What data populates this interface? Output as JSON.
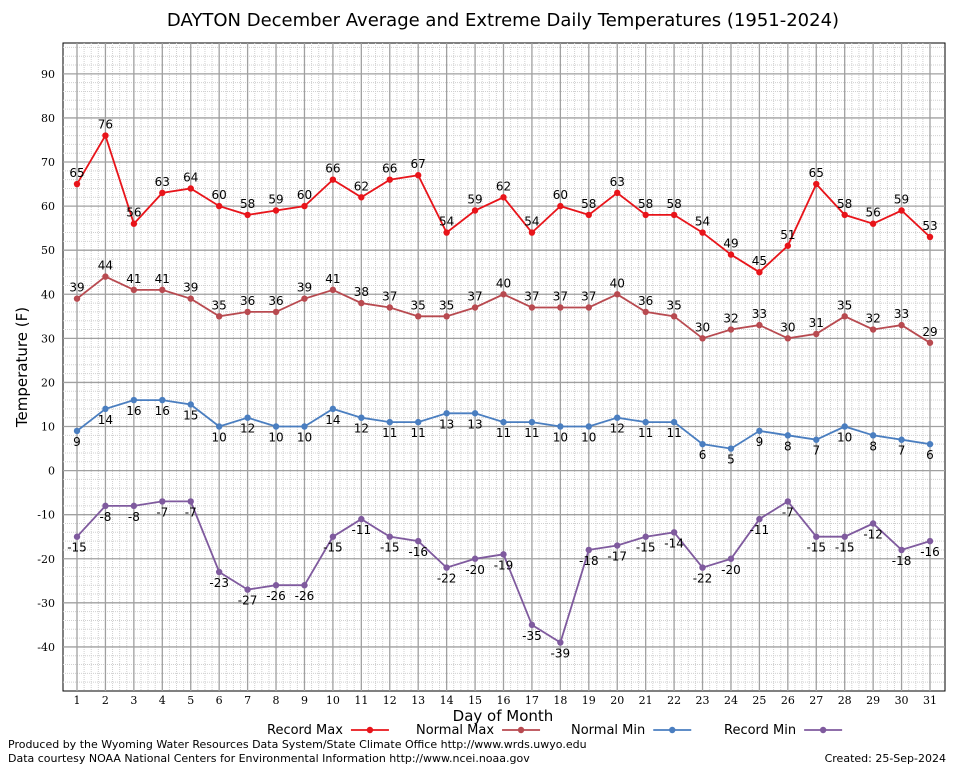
{
  "chart_data": {
    "type": "line",
    "title": "DAYTON December Average and Extreme Daily Temperatures (1951-2024)",
    "xlabel": "Day of Month",
    "ylabel": "Temperature (F)",
    "ylim": [
      -50,
      97
    ],
    "yticks": [
      -40,
      -30,
      -20,
      -10,
      0,
      10,
      20,
      30,
      40,
      50,
      60,
      70,
      80,
      90
    ],
    "x": [
      1,
      2,
      3,
      4,
      5,
      6,
      7,
      8,
      9,
      10,
      11,
      12,
      13,
      14,
      15,
      16,
      17,
      18,
      19,
      20,
      21,
      22,
      23,
      24,
      25,
      26,
      27,
      28,
      29,
      30,
      31
    ],
    "grid": true,
    "legend_position": "bottom",
    "series": [
      {
        "name": "Record Max",
        "color": "#e8141a",
        "values": [
          65,
          76,
          56,
          63,
          64,
          60,
          58,
          59,
          60,
          66,
          62,
          66,
          67,
          54,
          59,
          62,
          54,
          60,
          58,
          63,
          58,
          58,
          54,
          49,
          45,
          51,
          65,
          58,
          56,
          59,
          53
        ]
      },
      {
        "name": "Normal Max",
        "color": "#b84a50",
        "values": [
          39,
          44,
          41,
          41,
          39,
          35,
          36,
          36,
          39,
          41,
          38,
          37,
          35,
          35,
          37,
          40,
          37,
          37,
          37,
          40,
          36,
          35,
          30,
          32,
          33,
          30,
          31,
          35,
          32,
          33,
          29
        ]
      },
      {
        "name": "Normal Min",
        "color": "#4a7ec0",
        "values": [
          9,
          14,
          16,
          16,
          15,
          10,
          12,
          10,
          10,
          14,
          12,
          11,
          11,
          13,
          13,
          11,
          11,
          10,
          10,
          12,
          11,
          11,
          6,
          5,
          9,
          8,
          7,
          10,
          8,
          7,
          6
        ]
      },
      {
        "name": "Record Min",
        "color": "#7f5a9e",
        "values": [
          -15,
          -8,
          -8,
          -7,
          -7,
          -23,
          -27,
          -26,
          -26,
          -15,
          -11,
          -15,
          -16,
          -22,
          -20,
          -19,
          -35,
          -39,
          -18,
          -17,
          -15,
          -14,
          -22,
          -20,
          -11,
          -7,
          -15,
          -15,
          -12,
          -18,
          -16
        ]
      }
    ]
  },
  "footer": {
    "produced_by": "Produced by the Wyoming Water Resources Data System/State Climate Office http://www.wrds.uwyo.edu",
    "courtesy": "Data courtesy NOAA National Centers for Environmental Information http://www.ncei.noaa.gov",
    "created": "Created: 25-Sep-2024"
  }
}
